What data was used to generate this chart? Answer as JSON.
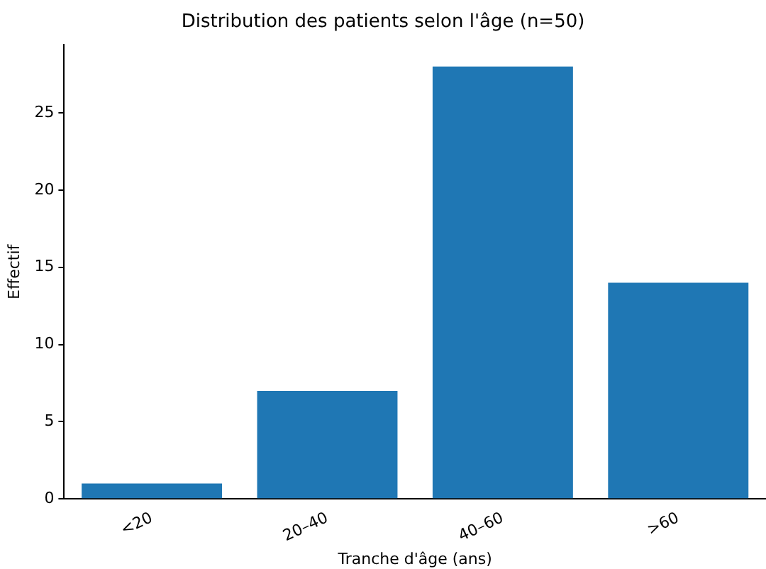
{
  "chart_data": {
    "type": "bar",
    "title": "Distribution des patients selon l'âge (n=50)",
    "xlabel": "Tranche d'âge (ans)",
    "ylabel": "Effectif",
    "categories": [
      "<20",
      "20–40",
      "40–60",
      ">60"
    ],
    "values": [
      1,
      7,
      28,
      14
    ],
    "color": "#1f77b4",
    "ylim": [
      0,
      29.4
    ],
    "yticks": [
      0,
      5,
      10,
      15,
      20,
      25
    ],
    "grid": false,
    "legend": false
  }
}
